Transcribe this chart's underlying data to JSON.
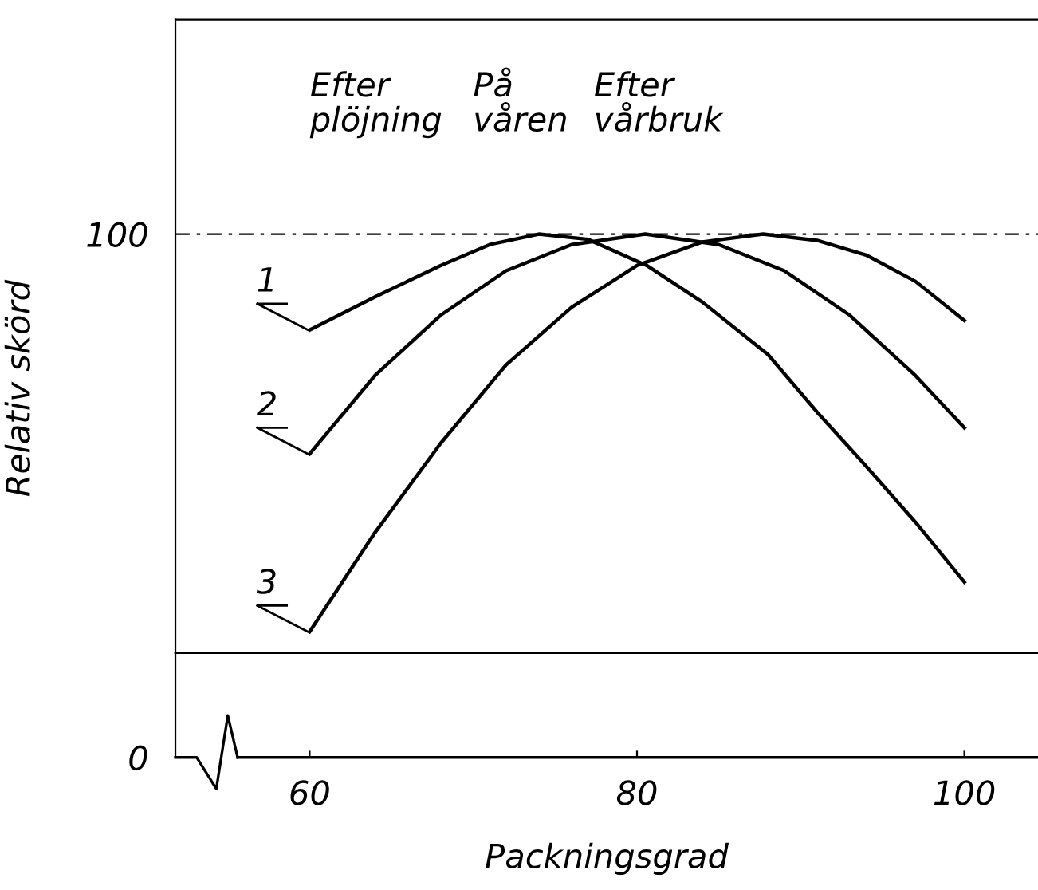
{
  "chart_data": {
    "type": "line",
    "xlabel": "Packningsgrad",
    "ylabel": "Relativ skörd",
    "xlim": [
      51.8,
      104.5
    ],
    "ylim": [
      0,
      141
    ],
    "xticks": [
      60,
      80,
      100
    ],
    "yticks": [
      0,
      100
    ],
    "grid": false,
    "legend": false,
    "marker": "none",
    "line_style": "solid",
    "annotations": [
      "Efter\nplöjning",
      "På\nvåren",
      "Efter\nvårbruk"
    ],
    "ref_lines": [
      {
        "axis": "y",
        "value": 100,
        "line_style": "dashed",
        "color": "#000000"
      },
      {
        "axis": "y",
        "value": 20,
        "line_style": "solid",
        "color": "#000000"
      }
    ],
    "series": [
      {
        "name": "1",
        "color": "#000000",
        "x": [
          60,
          64,
          68,
          71,
          74,
          77,
          80.6,
          84,
          88,
          91,
          93.9,
          97,
          100
        ],
        "values": [
          81.7,
          88,
          94,
          98,
          100,
          99,
          94,
          87,
          77,
          66,
          56,
          45,
          33.5
        ]
      },
      {
        "name": "2",
        "color": "#000000",
        "x": [
          60,
          64,
          68,
          72,
          76,
          80.5,
          85,
          89,
          93,
          97,
          100
        ],
        "values": [
          58,
          73,
          84.5,
          93,
          98,
          100,
          98,
          93,
          84.5,
          73,
          63
        ]
      },
      {
        "name": "3",
        "color": "#000000",
        "x": [
          60,
          64,
          68,
          72,
          76,
          80,
          84,
          87.7,
          91,
          94,
          97,
          100
        ],
        "values": [
          24,
          43,
          60,
          75,
          86,
          94,
          98.5,
          100,
          98.8,
          96,
          91,
          83.5
        ]
      }
    ]
  }
}
